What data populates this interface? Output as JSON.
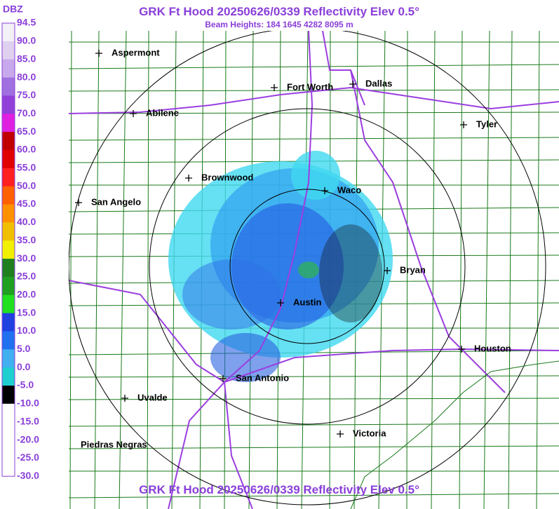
{
  "header": {
    "title": "GRK Ft Hood 20250626/0339 Reflectivity Elev 0.5°",
    "subtitle": "Beam Heights: 184 1645 4282 8095 m",
    "footer": "GRK Ft Hood 20250626/0339 Reflectivity Elev 0.5°"
  },
  "legend": {
    "title": "DBZ",
    "labels": [
      "94.5",
      "90.0",
      "85.0",
      "80.0",
      "75.0",
      "70.0",
      "65.0",
      "60.0",
      "55.0",
      "50.0",
      "45.0",
      "40.0",
      "35.0",
      "30.0",
      "25.0",
      "20.0",
      "15.0",
      "10.0",
      "5.0",
      "0.0",
      "-5.0",
      "-10.0",
      "-15.0",
      "-20.0",
      "-25.0",
      "-30.0"
    ]
  },
  "cities": [
    "Aspermont",
    "Fort Worth",
    "Dallas",
    "Abilene",
    "Tyler",
    "Brownwood",
    "Waco",
    "San Angelo",
    "Bryan",
    "Austin",
    "Houston",
    "San Antonio",
    "Uvalde",
    "Victoria",
    "Piedras Negras"
  ]
}
